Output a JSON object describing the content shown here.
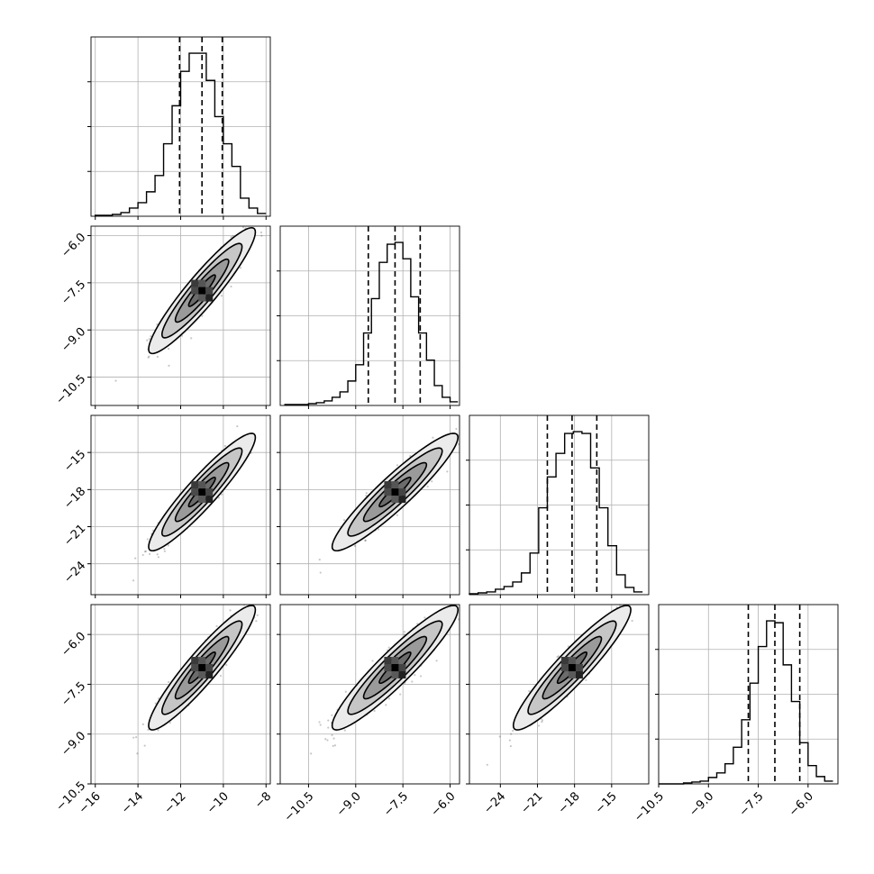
{
  "chart_data": {
    "type": "corner",
    "grid": true,
    "parameters": [
      {
        "index": 0,
        "range": [
          -16.2,
          -7.8
        ],
        "ticks": [
          -16,
          -14,
          -12,
          -10,
          -8
        ],
        "tick_labels": [
          "−16",
          "−14",
          "−12",
          "−10",
          "−8"
        ],
        "mean": -11.0,
        "sd": 1.0,
        "quantiles": [
          -12.05,
          -11.0,
          -10.05
        ]
      },
      {
        "index": 1,
        "range": [
          -11.4,
          -5.7
        ],
        "ticks": [
          -10.5,
          -9.0,
          -7.5,
          -6.0
        ],
        "tick_labels": [
          "−10.5",
          "−9.0",
          "−7.5",
          "−6.0"
        ],
        "mean": -7.75,
        "sd": 0.8,
        "quantiles": [
          -8.6,
          -7.75,
          -6.95
        ]
      },
      {
        "index": 2,
        "range": [
          -26.5,
          -12.0
        ],
        "ticks": [
          -24,
          -21,
          -18,
          -15
        ],
        "tick_labels": [
          "−24",
          "−21",
          "−18",
          "−15"
        ],
        "mean": -18.2,
        "sd": 1.9,
        "quantiles": [
          -20.2,
          -18.2,
          -16.2
        ]
      },
      {
        "index": 3,
        "range": [
          -10.5,
          -5.1
        ],
        "ticks": [
          -10.5,
          -9.0,
          -7.5,
          -6.0
        ],
        "tick_labels": [
          "−10.5",
          "−9.0",
          "−7.5",
          "−6.0"
        ],
        "mean": -7.0,
        "sd": 0.75,
        "quantiles": [
          -7.8,
          -7.0,
          -6.25
        ]
      }
    ],
    "histograms": [
      {
        "param": 0,
        "bin_edges": [
          -16.0,
          -15.6,
          -15.2,
          -14.8,
          -14.4,
          -14.0,
          -13.6,
          -13.2,
          -12.8,
          -12.4,
          -12.0,
          -11.6,
          -11.2,
          -10.8,
          -10.4,
          -10.0,
          -9.6,
          -9.2,
          -8.8,
          -8.4,
          -8.0
        ],
        "counts": [
          1,
          1,
          2,
          4,
          9,
          15,
          27,
          45,
          80,
          122,
          160,
          180,
          180,
          150,
          110,
          80,
          55,
          20,
          9,
          3
        ]
      },
      {
        "param": 1,
        "bin_edges": [
          -11.25,
          -11.0,
          -10.75,
          -10.5,
          -10.25,
          -10.0,
          -9.75,
          -9.5,
          -9.25,
          -9.0,
          -8.75,
          -8.5,
          -8.25,
          -8.0,
          -7.75,
          -7.5,
          -7.25,
          -7.0,
          -6.75,
          -6.5,
          -6.25,
          -6.0,
          -5.75
        ],
        "counts": [
          1,
          1,
          1,
          2,
          3,
          5,
          9,
          15,
          27,
          45,
          80,
          118,
          158,
          178,
          180,
          162,
          120,
          80,
          50,
          22,
          9,
          4
        ]
      },
      {
        "param": 2,
        "bin_edges": [
          -26.5,
          -25.8,
          -25.1,
          -24.4,
          -23.7,
          -23.0,
          -22.3,
          -21.6,
          -20.9,
          -20.2,
          -19.5,
          -18.8,
          -18.1,
          -17.4,
          -16.7,
          -16.0,
          -15.3,
          -14.6,
          -13.9,
          -13.2,
          -12.5
        ],
        "counts": [
          1,
          2,
          3,
          6,
          9,
          14,
          24,
          46,
          96,
          130,
          156,
          178,
          180,
          178,
          140,
          96,
          54,
          22,
          8,
          3
        ]
      },
      {
        "param": 3,
        "bin_edges": [
          -10.5,
          -10.25,
          -10.0,
          -9.75,
          -9.5,
          -9.25,
          -9.0,
          -8.75,
          -8.5,
          -8.25,
          -8.0,
          -7.75,
          -7.5,
          -7.25,
          -7.0,
          -6.75,
          -6.5,
          -6.25,
          -6.0,
          -5.75,
          -5.5,
          -5.25
        ],
        "counts": [
          0,
          0,
          0,
          1,
          2,
          3,
          7,
          12,
          22,
          40,
          70,
          110,
          150,
          178,
          176,
          130,
          90,
          45,
          20,
          8,
          3
        ]
      }
    ],
    "pairs": [
      {
        "x": 0,
        "y": 1,
        "rho": 0.93
      },
      {
        "x": 0,
        "y": 2,
        "rho": 0.93
      },
      {
        "x": 1,
        "y": 2,
        "rho": 0.93
      },
      {
        "x": 0,
        "y": 3,
        "rho": 0.93
      },
      {
        "x": 1,
        "y": 3,
        "rho": 0.93
      },
      {
        "x": 2,
        "y": 3,
        "rho": 0.93
      }
    ],
    "contour_levels_sigma": [
      0.5,
      1.0,
      1.5,
      2.0
    ],
    "quantile_levels": [
      0.16,
      0.5,
      0.84
    ]
  }
}
